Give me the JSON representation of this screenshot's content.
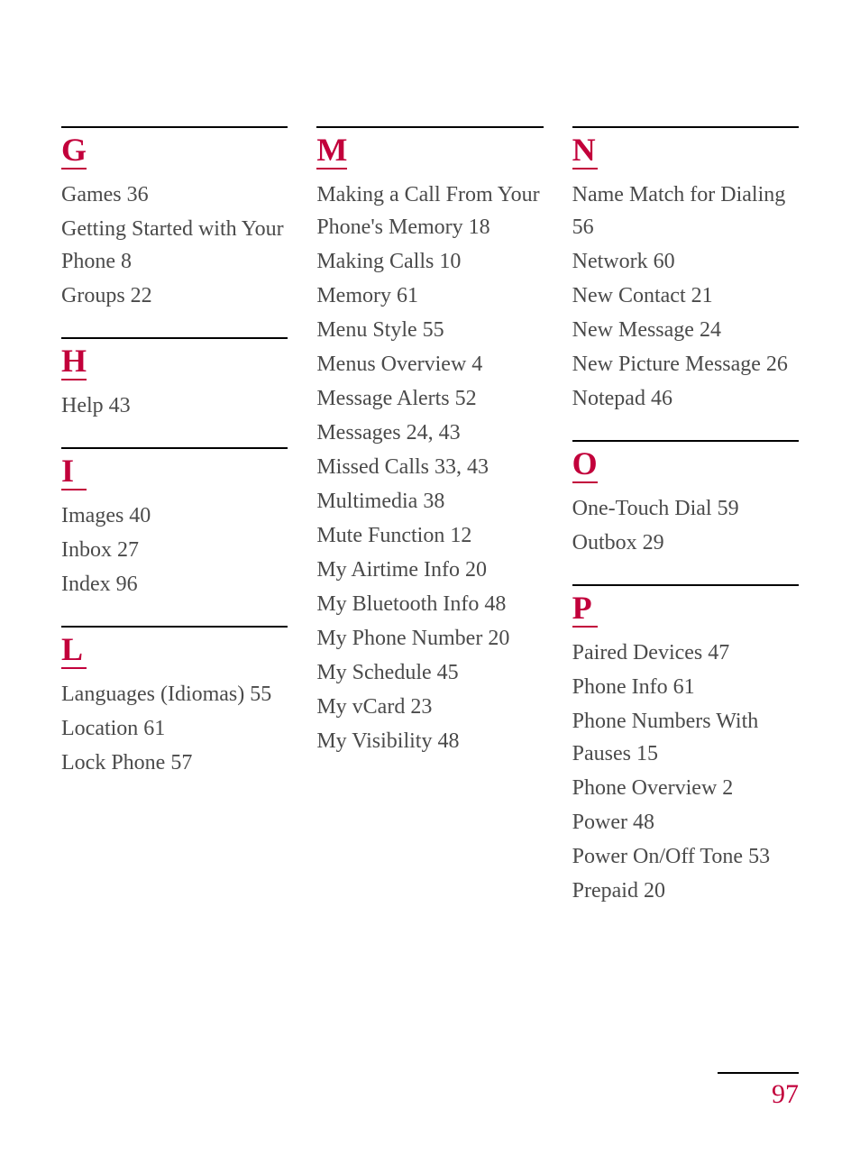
{
  "page_number": "97",
  "colors": {
    "accent": "#c2003b",
    "text": "#4a4a4a",
    "rule": "#000000",
    "background": "#ffffff"
  },
  "typography": {
    "letter_fontsize": 36,
    "entry_fontsize": 24,
    "pagenum_fontsize": 30,
    "font_family": "Georgia, 'Times New Roman', serif"
  },
  "columns": [
    {
      "sections": [
        {
          "letter": "G",
          "entries": [
            "Games 36",
            "Getting Started with Your Phone 8",
            "Groups 22"
          ]
        },
        {
          "letter": "H",
          "entries": [
            "Help 43"
          ]
        },
        {
          "letter": "I",
          "entries": [
            "Images 40",
            "Inbox 27",
            "Index 96"
          ]
        },
        {
          "letter": "L",
          "entries": [
            "Languages (Idiomas) 55",
            "Location 61",
            "Lock Phone 57"
          ]
        }
      ]
    },
    {
      "sections": [
        {
          "letter": "M",
          "entries": [
            "Making a Call From Your Phone's Memory 18",
            "Making Calls 10",
            "Memory 61",
            "Menu Style 55",
            "Menus Overview 4",
            "Message Alerts 52",
            "Messages 24, 43",
            "Missed Calls 33, 43",
            "Multimedia 38",
            "Mute Function 12",
            "My Airtime Info 20",
            "My Bluetooth Info 48",
            "My Phone Number 20",
            "My Schedule 45",
            "My vCard 23",
            "My Visibility 48"
          ]
        }
      ]
    },
    {
      "sections": [
        {
          "letter": "N",
          "entries": [
            "Name Match for Dialing 56",
            "Network 60",
            "New Contact 21",
            "New Message 24",
            "New Picture Message 26",
            "Notepad 46"
          ]
        },
        {
          "letter": "O",
          "entries": [
            "One-Touch Dial 59",
            "Outbox 29"
          ]
        },
        {
          "letter": "P",
          "entries": [
            "Paired Devices 47",
            "Phone Info 61",
            "Phone Numbers With Pauses 15",
            "Phone Overview 2",
            "Power 48",
            "Power On/Off Tone 53",
            "Prepaid 20"
          ]
        }
      ]
    }
  ]
}
